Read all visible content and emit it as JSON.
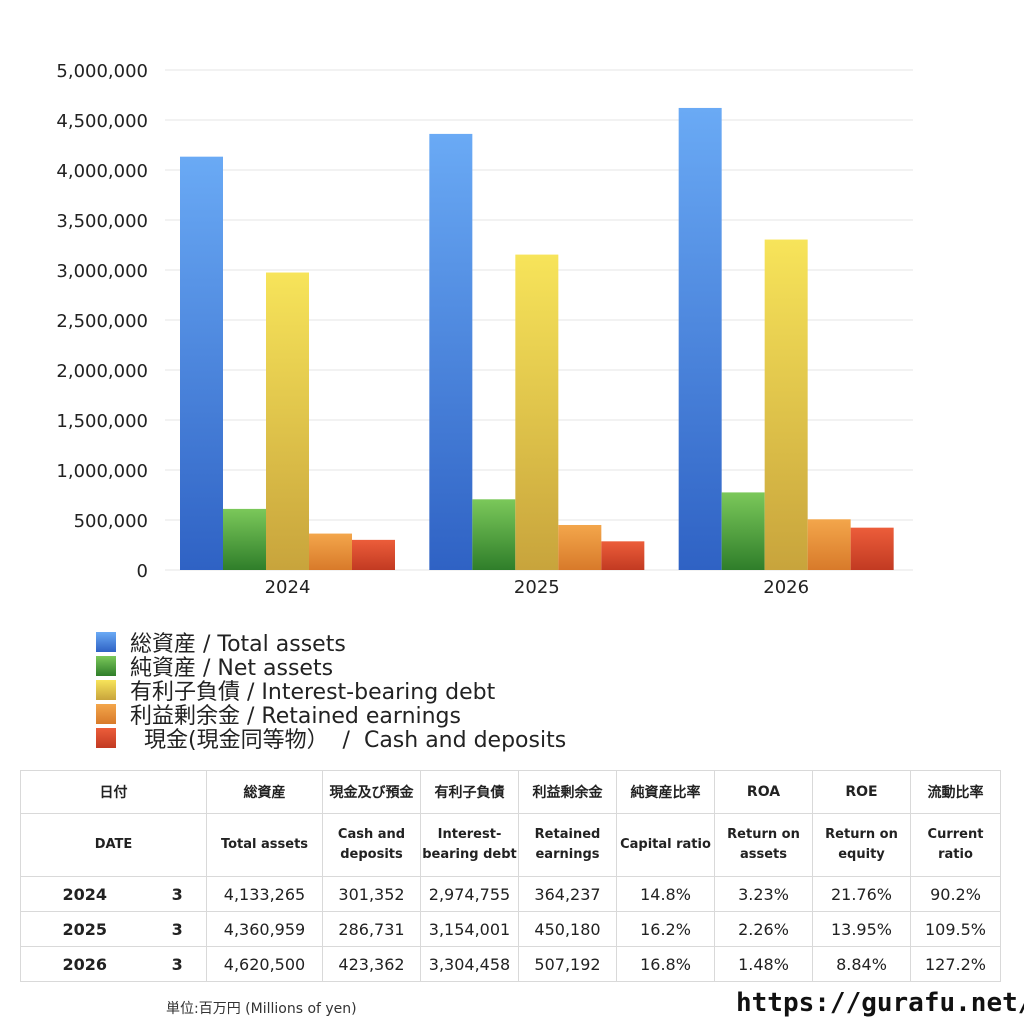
{
  "chart_data": {
    "type": "bar",
    "categories": [
      "2024",
      "2025",
      "2026"
    ],
    "series": [
      {
        "name": "総資産 / Total assets",
        "values": [
          4133265,
          4360959,
          4620500
        ],
        "color": "#3a7fe0",
        "light": "#6aaaf5",
        "dark": "#2f62c4"
      },
      {
        "name": "純資産 / Net assets",
        "values": [
          611000,
          707000,
          776000
        ],
        "color": "#4a9e3a",
        "light": "#7bc85a",
        "dark": "#2f7e2a"
      },
      {
        "name": "有利子負債 / Interest-bearing debt",
        "values": [
          2974755,
          3154001,
          3304458
        ],
        "color": "#e6c94a",
        "light": "#f7e45a",
        "dark": "#c8a43c"
      },
      {
        "name": "利益剰余金 / Retained earnings",
        "values": [
          364237,
          450180,
          507192
        ],
        "color": "#e8903a",
        "light": "#f3a64b",
        "dark": "#d87a2a"
      },
      {
        "name": "  現金(現金同等物）  /  Cash and deposits",
        "values": [
          301352,
          286731,
          423362
        ],
        "color": "#d9482a",
        "light": "#ec5d3a",
        "dark": "#c23a22"
      }
    ],
    "ylim": [
      0,
      5000000
    ],
    "yticks": [
      "5,000,000",
      "4,500,000",
      "4,000,000",
      "3,500,000",
      "3,000,000",
      "2,500,000",
      "2,000,000",
      "1,500,000",
      "1,000,000",
      "500,000",
      "0"
    ],
    "grid": true,
    "legend": "bottom-left"
  },
  "table": {
    "header1": [
      "日付",
      "総資産",
      "現金及び預金",
      "有利子負債",
      "利益剰余金",
      "純資産比率",
      "ROA",
      "ROE",
      "流動比率"
    ],
    "header2": [
      "DATE",
      "Total assets",
      "Cash and deposits",
      "Interest-bearing debt",
      "Retained earnings",
      "Capital ratio",
      "Return on assets",
      "Return on equity",
      "Current ratio"
    ],
    "rows": [
      [
        "2024",
        "3",
        "4,133,265",
        "301,352",
        "2,974,755",
        "364,237",
        "14.8%",
        "3.23%",
        "21.76%",
        "90.2%"
      ],
      [
        "2025",
        "3",
        "4,360,959",
        "286,731",
        "3,154,001",
        "450,180",
        "16.2%",
        "2.26%",
        "13.95%",
        "109.5%"
      ],
      [
        "2026",
        "3",
        "4,620,500",
        "423,362",
        "3,304,458",
        "507,192",
        "16.8%",
        "1.48%",
        "8.84%",
        "127.2%"
      ]
    ]
  },
  "footer": {
    "unit": "単位:百万円 (Millions of yen)",
    "site": "https://gurafu.net/"
  }
}
